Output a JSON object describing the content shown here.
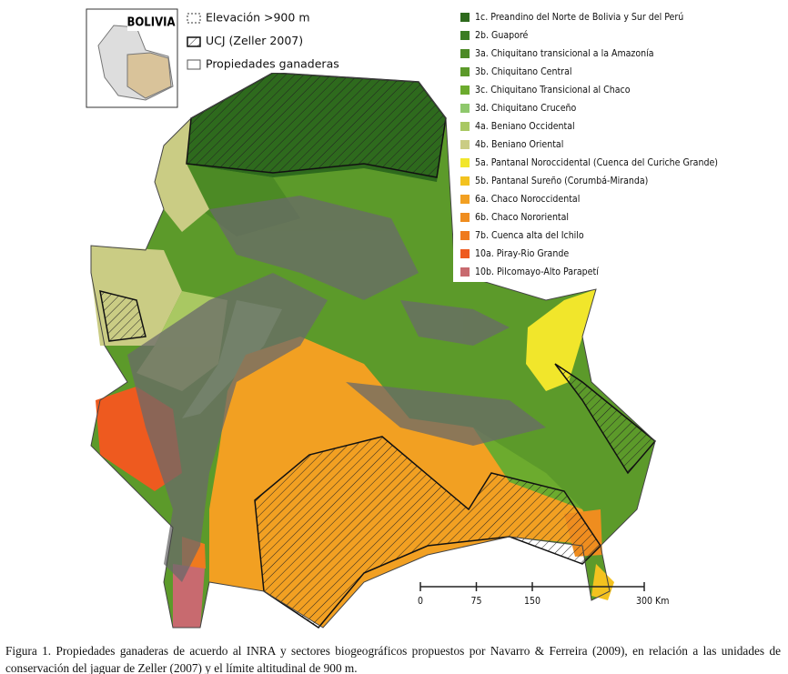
{
  "inset": {
    "label": "BOLIVIA"
  },
  "legend_left": [
    {
      "label": "Elevación >900 m"
    },
    {
      "label": "UCJ (Zeller 2007)"
    },
    {
      "label": "Propiedades ganaderas"
    }
  ],
  "legend_right": [
    {
      "label": "1c. Preandino del Norte de Bolivia y Sur del Perú",
      "color": "#2e6a1d"
    },
    {
      "label": "2b. Guaporé",
      "color": "#3b7c22"
    },
    {
      "label": "3a. Chiquitano transicional a la Amazonía",
      "color": "#4c8a25"
    },
    {
      "label": "3b. Chiquitano Central",
      "color": "#5c9a2a"
    },
    {
      "label": "3c. Chiquitano Transicional al Chaco",
      "color": "#6cab2e"
    },
    {
      "label": "3d. Chiquitano Cruceño",
      "color": "#8fc86c"
    },
    {
      "label": "4a. Beniano Occidental",
      "color": "#a9c862"
    },
    {
      "label": "4b. Beniano Oriental",
      "color": "#cacc84"
    },
    {
      "label": "5a. Pantanal Noroccidental (Cuenca del Curiche Grande)",
      "color": "#f1e62b"
    },
    {
      "label": "5b. Pantanal Sureño (Corumbá-Miranda)",
      "color": "#f3c21f"
    },
    {
      "label": "6a. Chaco Noroccidental",
      "color": "#f2a022"
    },
    {
      "label": "6b. Chaco Nororiental",
      "color": "#ef8d1f"
    },
    {
      "label": "7b. Cuenca alta del Ichilo",
      "color": "#ef7a1e"
    },
    {
      "label": "10a. Piray-Rio Grande",
      "color": "#ee5a1f"
    },
    {
      "label": "10b. Pilcomayo-Alto Parapetí",
      "color": "#c86a6f"
    }
  ],
  "scale_bar": {
    "ticks": [
      0,
      75,
      150,
      300
    ],
    "unit": "Km"
  },
  "caption": [
    "Figura 1. Propiedades ganaderas de acuerdo al INRA y sectores biogeográficos propuestos por Navarro & Ferreira (2009), en relación a las unidades de",
    "conservación del jaguar de Zeller (2007) y el límite altitudinal de 900 m."
  ]
}
